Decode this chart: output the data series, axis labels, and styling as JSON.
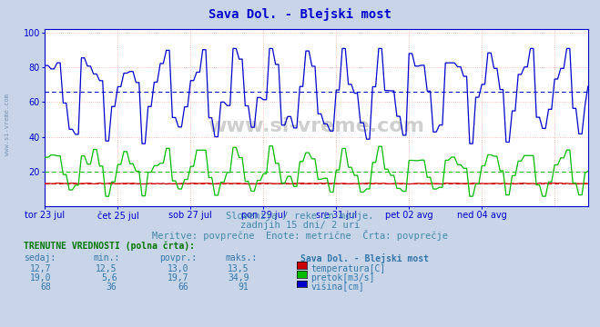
{
  "title": "Sava Dol. - Blejski most",
  "title_color": "#0000cc",
  "bg_color": "#c8d4e8",
  "plot_bg_color": "#ffffff",
  "subtitle1": "Slovenija / reke in morje.",
  "subtitle2": "zadnjih 15 dni/ 2 uri",
  "subtitle3": "Meritve: povprečne  Enote: metrične  Črta: povprečje",
  "xlabel_dates": [
    "tor 23 jul",
    "čet 25 jul",
    "sob 27 jul",
    "pon 29 jul",
    "sre 31 jul",
    "pet 02 avg",
    "ned 04 avg"
  ],
  "n_points": 180,
  "temp_min": 12.5,
  "temp_max": 13.5,
  "temp_avg": 13.0,
  "temp_current": 12.7,
  "pretok_min": 5.6,
  "pretok_max": 34.9,
  "pretok_avg": 19.7,
  "pretok_current": 19.0,
  "visina_min": 36,
  "visina_max": 91,
  "visina_avg": 66,
  "visina_current": 68,
  "temp_color": "#cc0000",
  "pretok_color": "#00bb00",
  "visina_color": "#0000cc",
  "grid_color": "#ffaaaa",
  "axis_color": "#0000cc",
  "text_color": "#4488aa",
  "label_color": "#3377aa",
  "table_header_color": "#007700",
  "ymin": 0,
  "ymax": 100,
  "watermark": "www.si-vreme.com",
  "sidebar_text": "www.si-vreme.com"
}
